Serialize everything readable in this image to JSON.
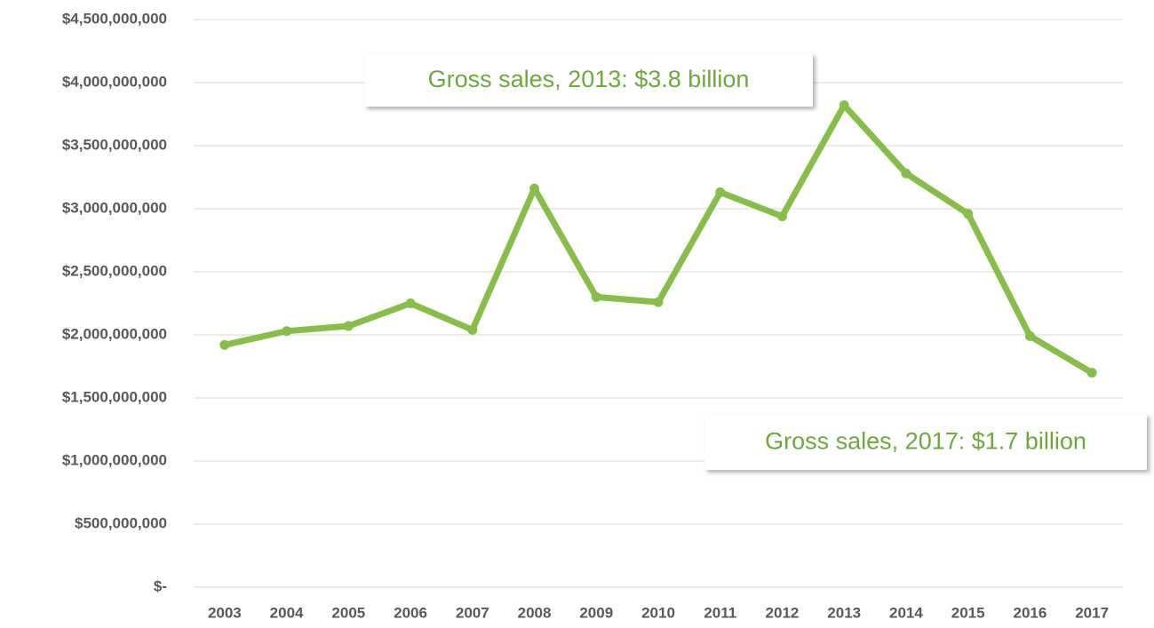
{
  "chart_data": {
    "type": "line",
    "categories": [
      "2003",
      "2004",
      "2005",
      "2006",
      "2007",
      "2008",
      "2009",
      "2010",
      "2011",
      "2012",
      "2013",
      "2014",
      "2015",
      "2016",
      "2017"
    ],
    "series": [
      {
        "color": "#86bf47",
        "values": [
          1920000000,
          2030000000,
          2070000000,
          2250000000,
          2040000000,
          3160000000,
          2300000000,
          2260000000,
          3130000000,
          2940000000,
          3820000000,
          3280000000,
          2960000000,
          1990000000,
          1700000000
        ]
      }
    ],
    "ylim": [
      0,
      4500000000
    ],
    "yticks": [
      {
        "value": 0,
        "label": "$-"
      },
      {
        "value": 500000000,
        "label": "$500,000,000"
      },
      {
        "value": 1000000000,
        "label": "$1,000,000,000"
      },
      {
        "value": 1500000000,
        "label": "$1,500,000,000"
      },
      {
        "value": 2000000000,
        "label": "$2,000,000,000"
      },
      {
        "value": 2500000000,
        "label": "$2,500,000,000"
      },
      {
        "value": 3000000000,
        "label": "$3,000,000,000"
      },
      {
        "value": 3500000000,
        "label": "$3,500,000,000"
      },
      {
        "value": 4000000000,
        "label": "$4,000,000,000"
      },
      {
        "value": 4500000000,
        "label": "$4,500,000,000"
      }
    ],
    "grid": true,
    "annotations": [
      "Gross sales, 2013: $3.8 billion",
      "Gross sales, 2017: $1.7 billion"
    ]
  }
}
